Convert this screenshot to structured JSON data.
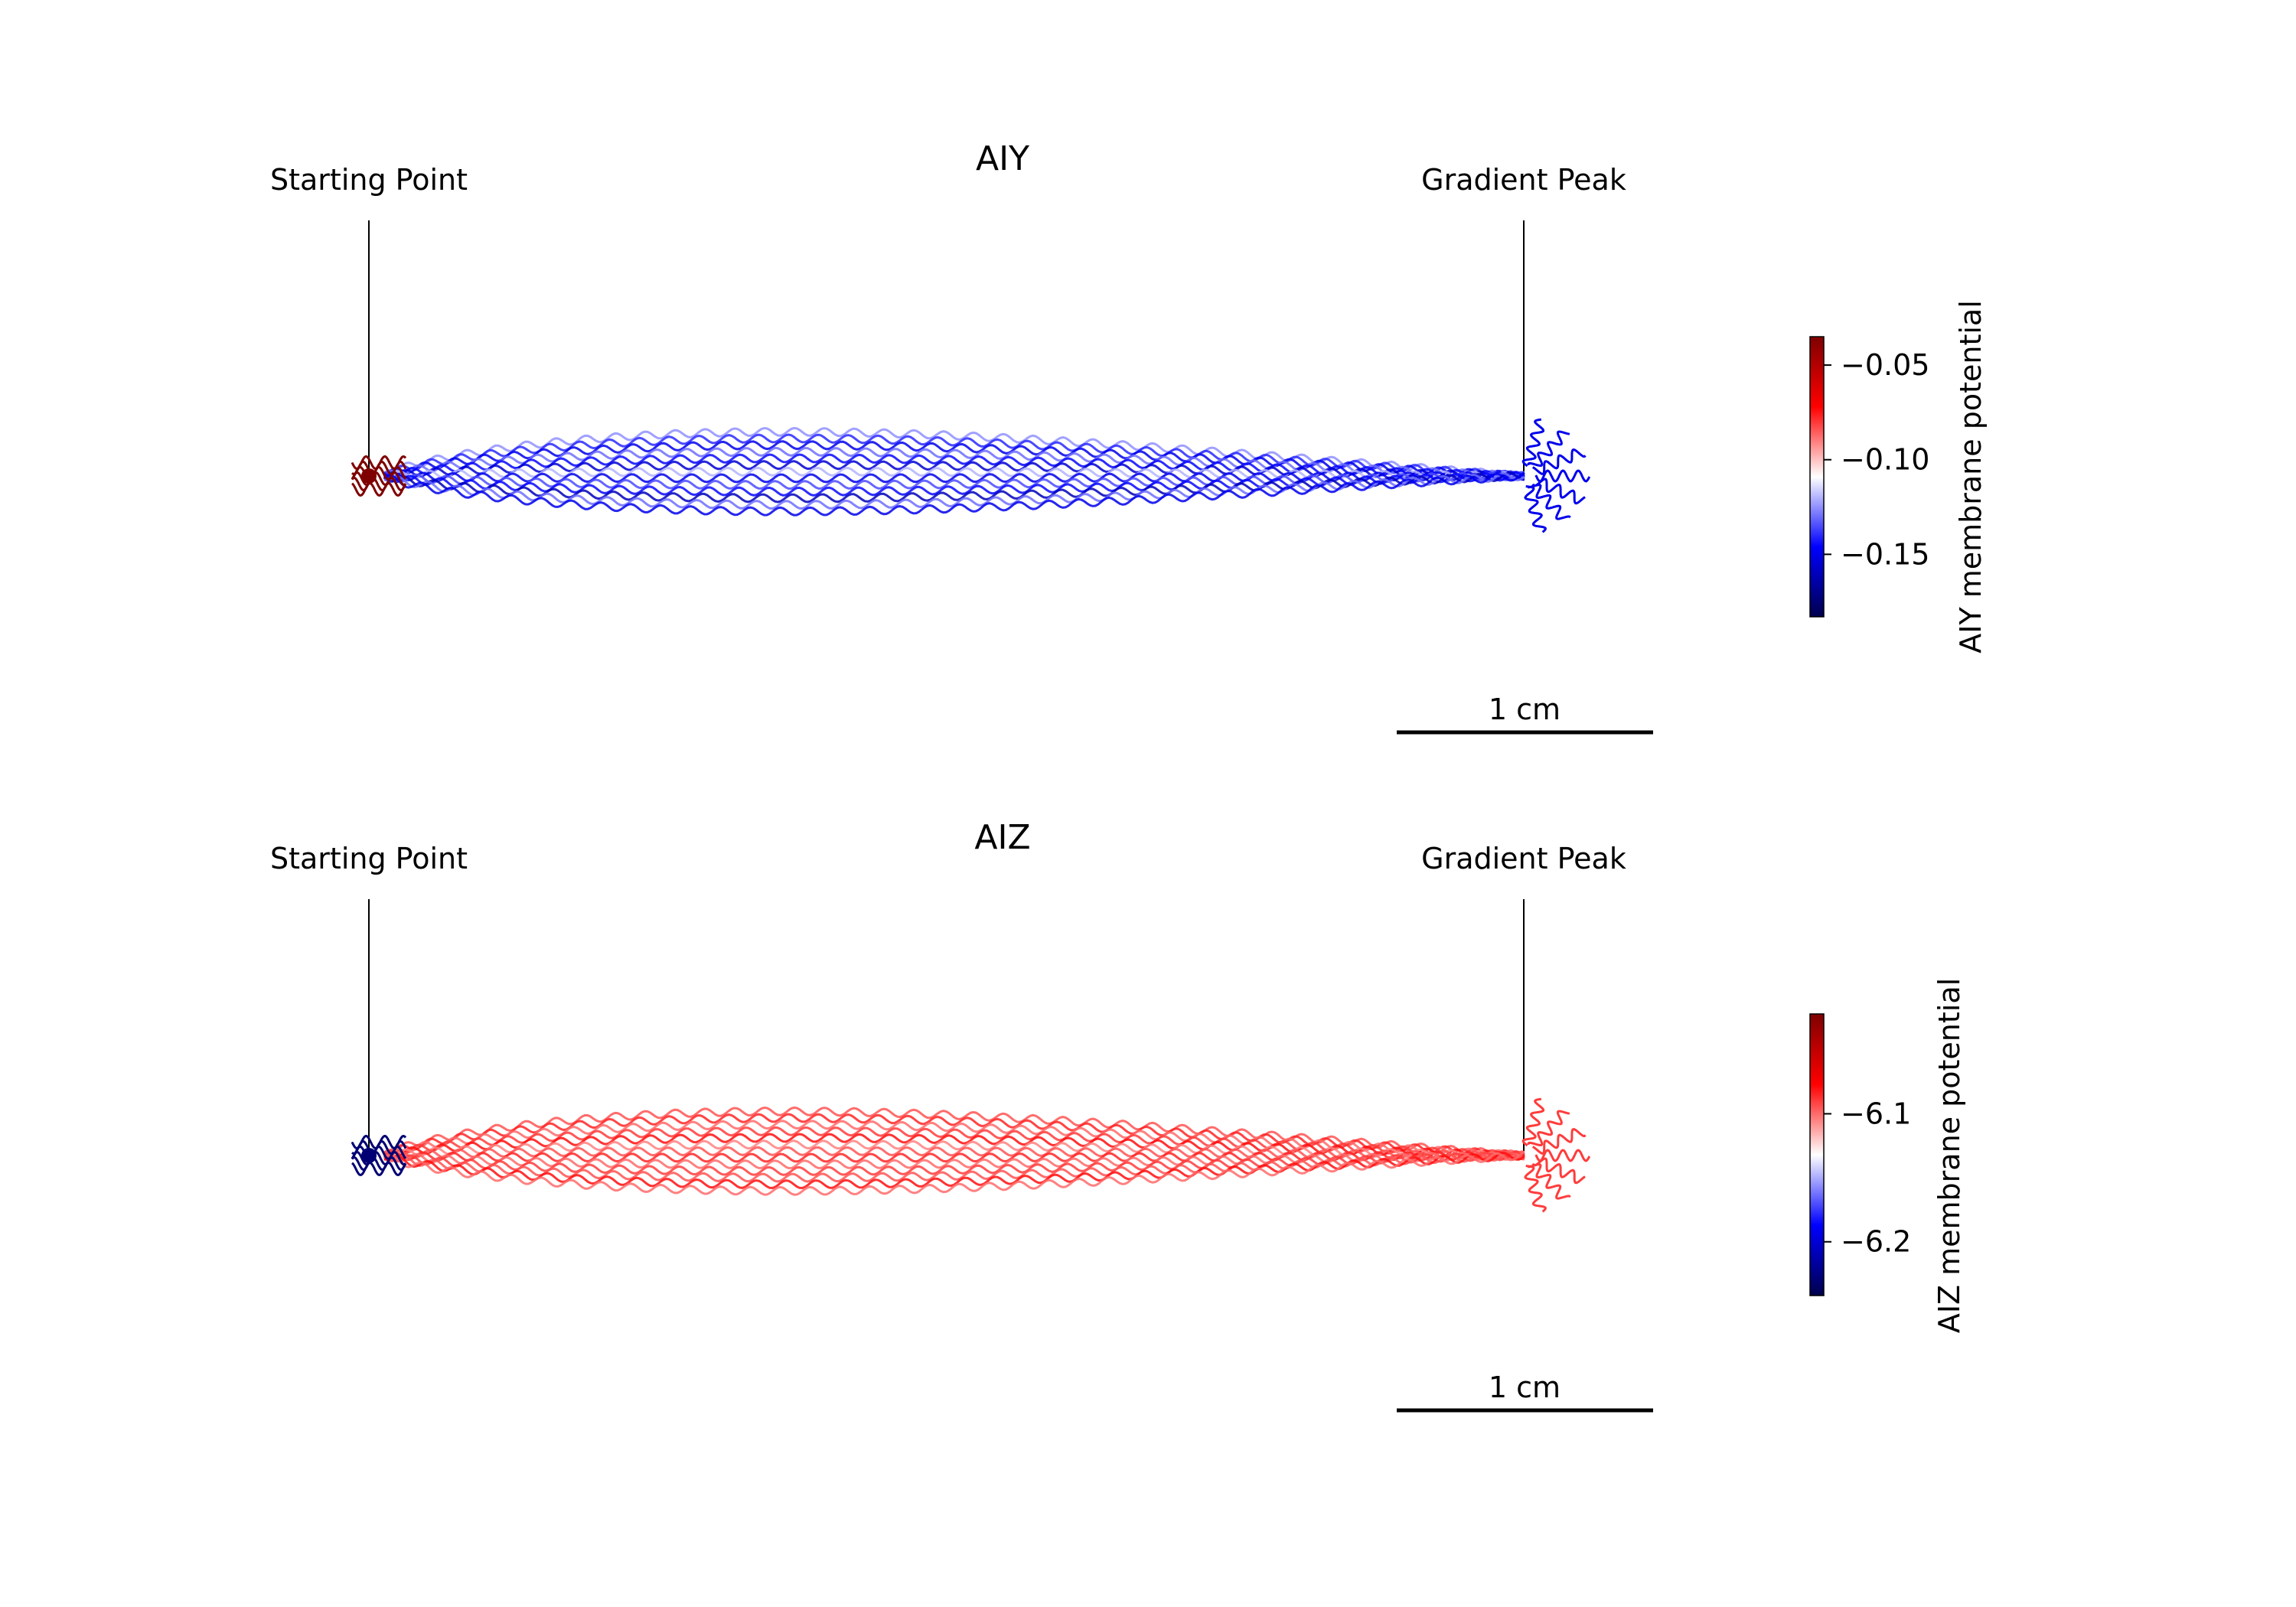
{
  "chart_data": [
    {
      "type": "line",
      "title": "AIY",
      "description_note": "",
      "annotations": [
        "Starting Point",
        "Gradient Peak"
      ],
      "scale_bar": {
        "label": "1 cm",
        "length_cm": 1
      },
      "x_range_cm": [
        -0.2,
        4.9
      ],
      "start_point_cm": [
        0,
        0
      ],
      "gradient_peak_cm": [
        4.5,
        0
      ],
      "trajectory_count": 13,
      "trajectory_values": [
        -0.125,
        -0.14,
        -0.15,
        -0.13,
        -0.145,
        -0.155,
        -0.12,
        -0.15,
        -0.135,
        -0.145,
        -0.16,
        -0.13,
        -0.15
      ],
      "start_value": -0.035,
      "peak_value": -0.15,
      "colorbar": {
        "label": "AIY membrane potential",
        "range": [
          -0.183,
          -0.035
        ],
        "ticks": [
          -0.05,
          -0.1,
          -0.15
        ],
        "tick_labels": [
          "−0.05",
          "−0.10",
          "−0.15"
        ],
        "colormap": [
          "#00004d",
          "#0000ff",
          "#ffffff",
          "#ff0000",
          "#7f0000"
        ]
      }
    },
    {
      "type": "line",
      "title": "AIZ",
      "annotations": [
        "Starting Point",
        "Gradient Peak"
      ],
      "scale_bar": {
        "label": "1 cm",
        "length_cm": 1
      },
      "x_range_cm": [
        -0.2,
        4.9
      ],
      "start_point_cm": [
        0,
        0
      ],
      "gradient_peak_cm": [
        4.5,
        0
      ],
      "trajectory_count": 13,
      "trajectory_values": [
        -6.095,
        -6.085,
        -6.1,
        -6.09,
        -6.08,
        -6.105,
        -6.095,
        -6.085,
        -6.1,
        -6.09,
        -6.095,
        -6.08,
        -6.1
      ],
      "start_value": -6.23,
      "peak_value": -6.09,
      "colorbar": {
        "label": "AIZ membrane potential",
        "range": [
          -6.242,
          -6.022
        ],
        "ticks": [
          -6.1,
          -6.2
        ],
        "tick_labels": [
          "−6.1",
          "−6.2"
        ],
        "colormap": [
          "#00004d",
          "#0000ff",
          "#ffffff",
          "#ff0000",
          "#7f0000"
        ]
      }
    }
  ]
}
